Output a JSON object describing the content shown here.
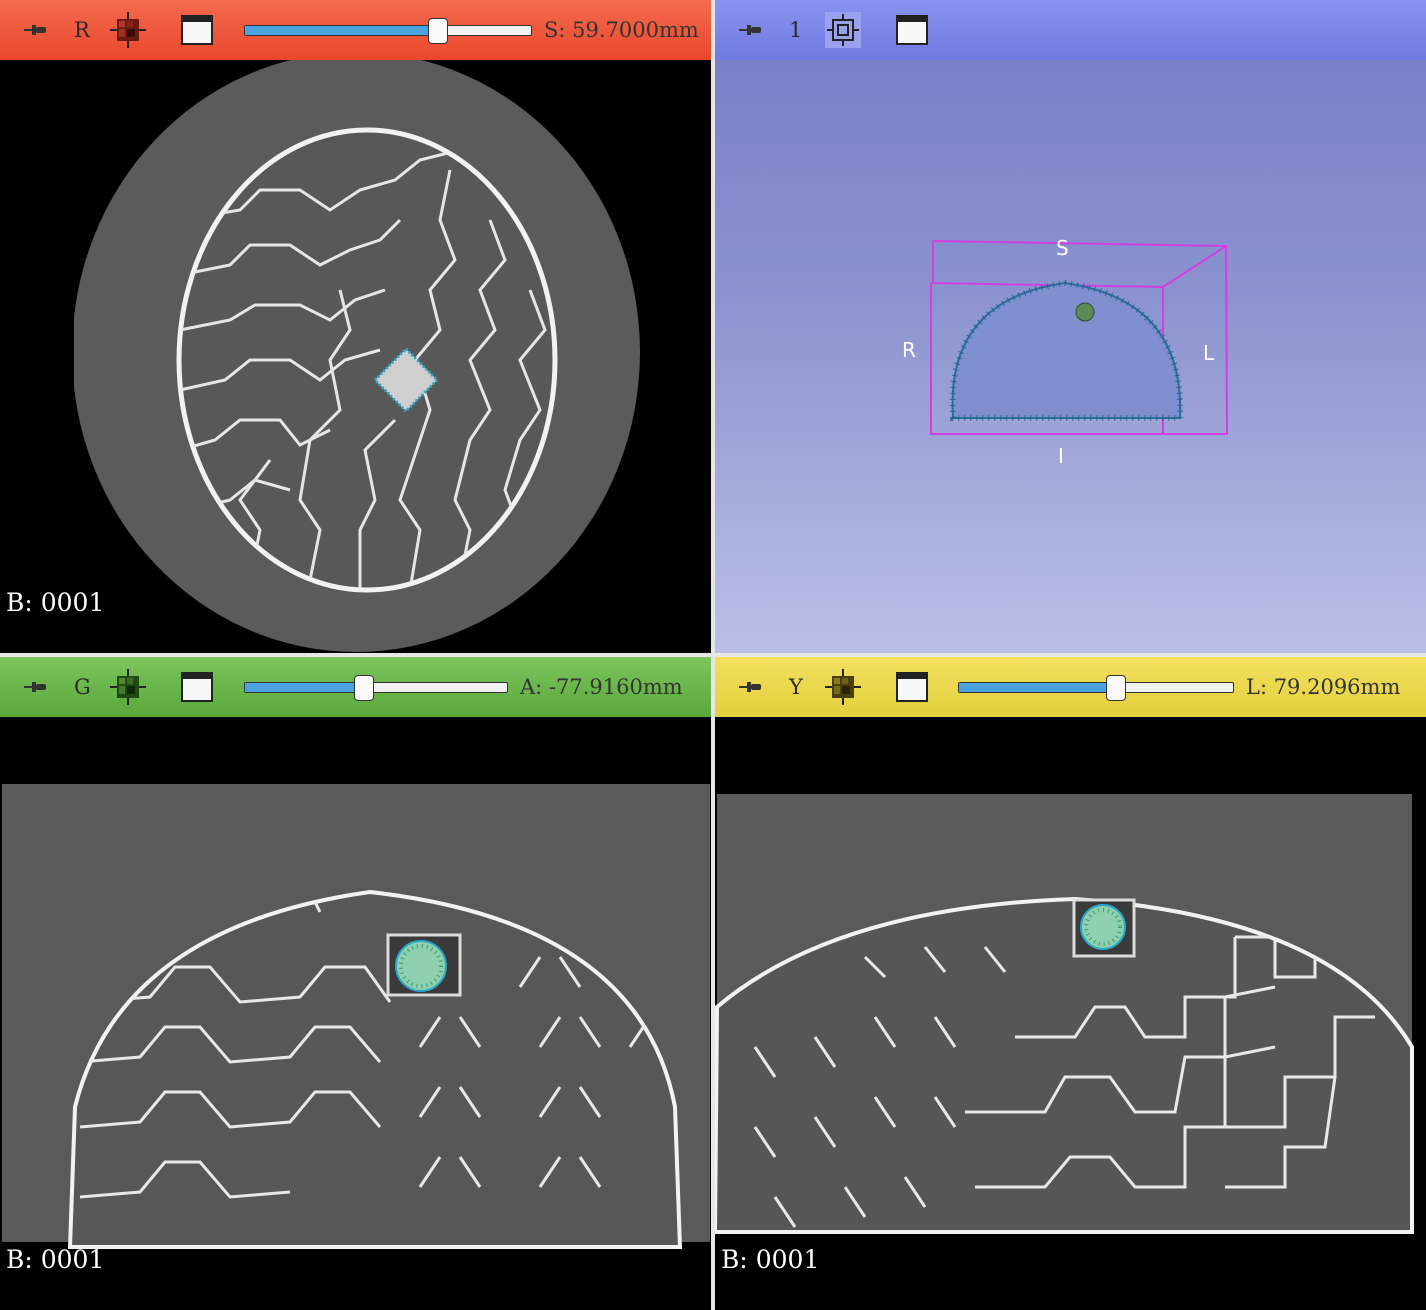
{
  "views": {
    "red": {
      "bar_color": "#f15a3c",
      "letter": "R",
      "readout": "S: 59.7000mm",
      "slider_fraction": 0.67,
      "corner_text": "B: 0001"
    },
    "threed": {
      "bar_color": "#7a85e6",
      "letter": "1",
      "orientation_labels": {
        "superior": "S",
        "inferior": "I",
        "right": "R",
        "left": "L"
      }
    },
    "green": {
      "bar_color": "#6ab84a",
      "letter": "G",
      "readout": "A: -77.9160mm",
      "slider_fraction": 0.45,
      "corner_text": "B: 0001"
    },
    "yellow": {
      "bar_color": "#ecd94a",
      "letter": "Y",
      "readout": "L: 79.2096mm",
      "slider_fraction": 0.57,
      "corner_text": "B: 0001"
    }
  },
  "icons": [
    "pin-icon",
    "slice-grid-icon",
    "maximize-window-icon",
    "center-3d-view-icon"
  ],
  "colors": {
    "bounding_box": "#d040e0",
    "segmentation": "#2aa6c6"
  }
}
